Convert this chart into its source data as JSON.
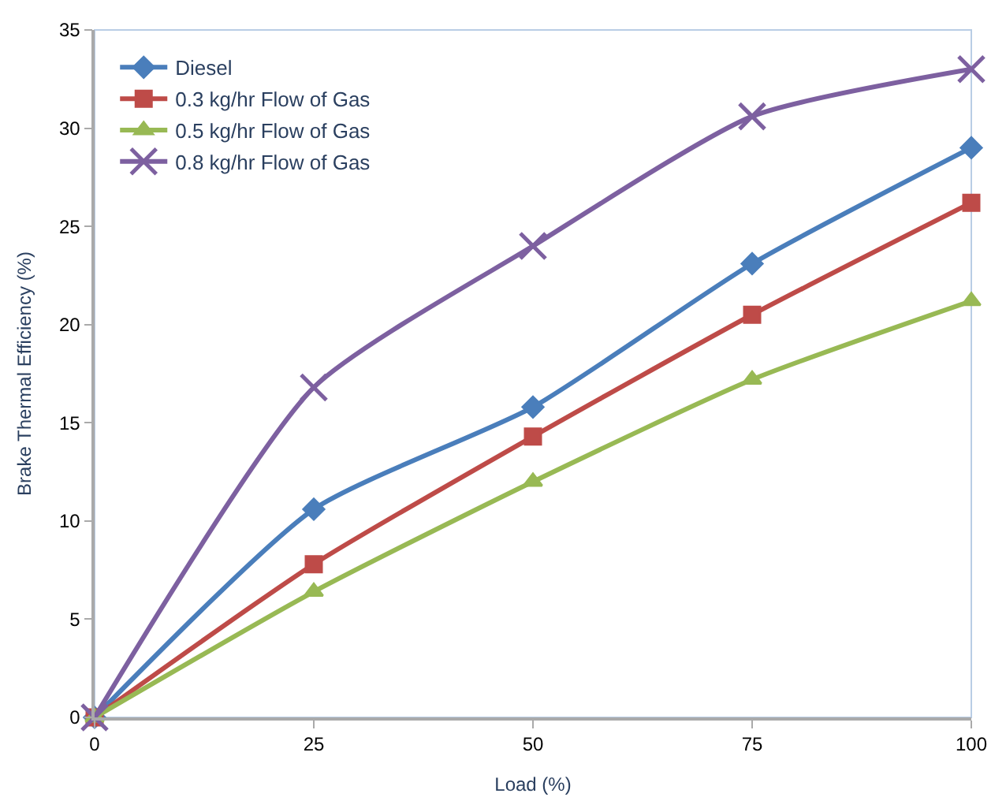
{
  "chart_data": {
    "type": "line",
    "xlabel": "Load (%)",
    "ylabel": "Brake Thermal Efficiency (%)",
    "x": [
      0,
      25,
      50,
      75,
      100
    ],
    "series": [
      {
        "name": "Diesel",
        "color": "#4a7ebb",
        "marker": "diamond",
        "values": [
          0,
          10.6,
          15.8,
          23.1,
          29.0
        ]
      },
      {
        "name": "0.3 kg/hr Flow of Gas",
        "color": "#be4b48",
        "marker": "square",
        "values": [
          0,
          7.8,
          14.3,
          20.5,
          26.2
        ]
      },
      {
        "name": "0.5 kg/hr Flow of Gas",
        "color": "#98b954",
        "marker": "triangle",
        "values": [
          0,
          6.4,
          12.0,
          17.2,
          21.2
        ]
      },
      {
        "name": "0.8 kg/hr Flow of Gas",
        "color": "#7d60a0",
        "marker": "cross",
        "values": [
          0,
          16.8,
          24.0,
          30.6,
          33.0
        ]
      }
    ],
    "xlim": [
      0,
      100
    ],
    "xticks": [
      0,
      25,
      50,
      75,
      100
    ],
    "ylim": [
      0,
      35
    ],
    "yticks": [
      0,
      5,
      10,
      15,
      20,
      25,
      30,
      35
    ],
    "grid": false,
    "legend": "top left",
    "line_style": "solid"
  }
}
